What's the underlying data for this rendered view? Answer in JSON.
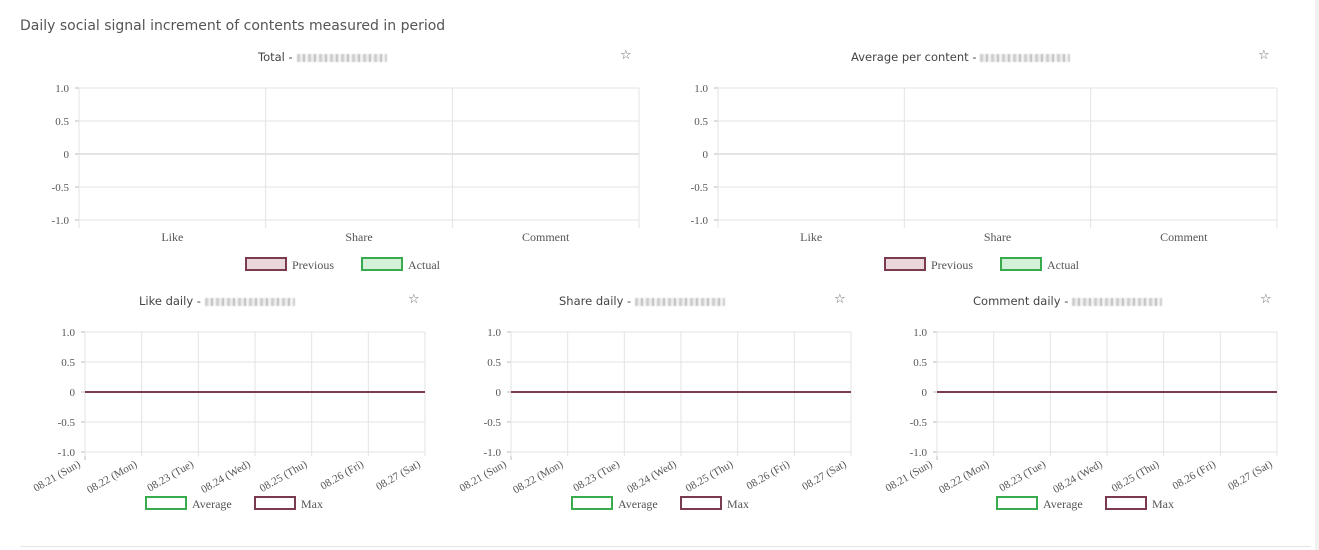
{
  "section_title": "Daily social signal increment of contents measured in period",
  "colors": {
    "previous_stroke": "#7a3b4e",
    "previous_fill": "#e9d7dc",
    "actual_stroke": "#3aaa4e",
    "actual_fill": "#d3f1d8",
    "average_stroke": "#3aaa4e",
    "max_stroke": "#7a3b4e",
    "grid": "#e3e3e3",
    "axis": "#bbbbbb"
  },
  "star_glyph": "☆",
  "chart_data": [
    {
      "id": "total",
      "type": "bar",
      "title": "Total -",
      "categories": [
        "Like",
        "Share",
        "Comment"
      ],
      "series": [
        {
          "name": "Previous",
          "values": [
            0,
            0,
            0
          ]
        },
        {
          "name": "Actual",
          "values": [
            0,
            0,
            0
          ]
        }
      ],
      "ylim": [
        -1.0,
        1.0
      ],
      "yticks": [
        "1.0",
        "0.5",
        "0",
        "-0.5",
        "-1.0"
      ],
      "legend": "bottom"
    },
    {
      "id": "average",
      "type": "bar",
      "title": "Average per content -",
      "categories": [
        "Like",
        "Share",
        "Comment"
      ],
      "series": [
        {
          "name": "Previous",
          "values": [
            0,
            0,
            0
          ]
        },
        {
          "name": "Actual",
          "values": [
            0,
            0,
            0
          ]
        }
      ],
      "ylim": [
        -1.0,
        1.0
      ],
      "yticks": [
        "1.0",
        "0.5",
        "0",
        "-0.5",
        "-1.0"
      ],
      "legend": "bottom"
    },
    {
      "id": "like",
      "type": "line",
      "title": "Like daily -",
      "x": [
        "08.21 (Sun)",
        "08.22 (Mon)",
        "08.23 (Tue)",
        "08.24 (Wed)",
        "08.25 (Thu)",
        "08.26 (Fri)",
        "08.27 (Sat)"
      ],
      "series": [
        {
          "name": "Average",
          "values": [
            0,
            0,
            0,
            0,
            0,
            0,
            0
          ]
        },
        {
          "name": "Max",
          "values": [
            0,
            0,
            0,
            0,
            0,
            0,
            0
          ]
        }
      ],
      "ylim": [
        -1.0,
        1.0
      ],
      "yticks": [
        "1.0",
        "0.5",
        "0",
        "-0.5",
        "-1.0"
      ],
      "legend": "bottom"
    },
    {
      "id": "share",
      "type": "line",
      "title": "Share daily -",
      "x": [
        "08.21 (Sun)",
        "08.22 (Mon)",
        "08.23 (Tue)",
        "08.24 (Wed)",
        "08.25 (Thu)",
        "08.26 (Fri)",
        "08.27 (Sat)"
      ],
      "series": [
        {
          "name": "Average",
          "values": [
            0,
            0,
            0,
            0,
            0,
            0,
            0
          ]
        },
        {
          "name": "Max",
          "values": [
            0,
            0,
            0,
            0,
            0,
            0,
            0
          ]
        }
      ],
      "ylim": [
        -1.0,
        1.0
      ],
      "yticks": [
        "1.0",
        "0.5",
        "0",
        "-0.5",
        "-1.0"
      ],
      "legend": "bottom"
    },
    {
      "id": "comment",
      "type": "line",
      "title": "Comment daily -",
      "x": [
        "08.21 (Sun)",
        "08.22 (Mon)",
        "08.23 (Tue)",
        "08.24 (Wed)",
        "08.25 (Thu)",
        "08.26 (Fri)",
        "08.27 (Sat)"
      ],
      "series": [
        {
          "name": "Average",
          "values": [
            0,
            0,
            0,
            0,
            0,
            0,
            0
          ]
        },
        {
          "name": "Max",
          "values": [
            0,
            0,
            0,
            0,
            0,
            0,
            0
          ]
        }
      ],
      "ylim": [
        -1.0,
        1.0
      ],
      "yticks": [
        "1.0",
        "0.5",
        "0",
        "-0.5",
        "-1.0"
      ],
      "legend": "bottom"
    }
  ]
}
